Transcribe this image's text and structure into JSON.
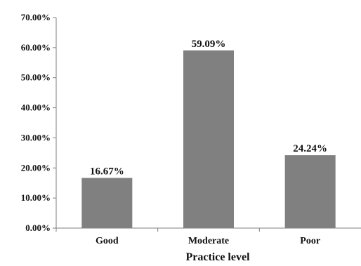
{
  "chart_data": {
    "type": "bar",
    "categories": [
      "Good",
      "Moderate",
      "Poor"
    ],
    "values": [
      16.67,
      59.09,
      24.24
    ],
    "value_labels": [
      "16.67%",
      "59.09%",
      "24.24%"
    ],
    "title": "",
    "xlabel": "Practice level",
    "ylabel": "",
    "ylim": [
      0,
      70
    ],
    "yticks": [
      0,
      10,
      20,
      30,
      40,
      50,
      60,
      70
    ],
    "ytick_labels": [
      "0.00%",
      "10.00%",
      "20.00%",
      "30.00%",
      "40.00%",
      "50.00%",
      "60.00%",
      "70.00%"
    ],
    "grid": false,
    "legend": "none",
    "bar_color": "#808080",
    "axis_color": "#7f7f7f"
  }
}
